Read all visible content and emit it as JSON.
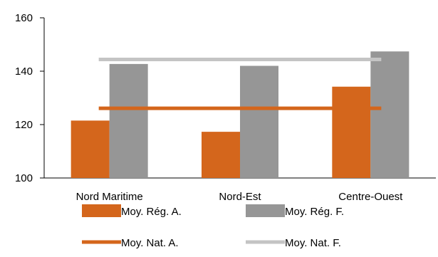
{
  "chart_data": {
    "type": "bar",
    "categories": [
      "Nord Maritime",
      "Nord-Est",
      "Centre-Ouest"
    ],
    "series": [
      {
        "name": "Moy. Rég. A.",
        "kind": "bar",
        "color": "#d4661c",
        "values": [
          121.5,
          117.3,
          134.2
        ]
      },
      {
        "name": "Moy. Rég. F.",
        "kind": "bar",
        "color": "#969696",
        "values": [
          142.7,
          142.0,
          147.4
        ]
      },
      {
        "name": "Moy. Nat. A.",
        "kind": "line",
        "color": "#d4661c",
        "values": [
          126.1,
          126.1,
          126.1
        ]
      },
      {
        "name": "Moy. Nat. F.",
        "kind": "line",
        "color": "#c4c4c4",
        "values": [
          144.4,
          144.4,
          144.4
        ]
      }
    ],
    "yticks": [
      100,
      120,
      140,
      160
    ],
    "ylim": [
      100,
      160
    ],
    "title": "",
    "xlabel": "",
    "ylabel": "",
    "grid": false,
    "legend_position": "bottom"
  }
}
